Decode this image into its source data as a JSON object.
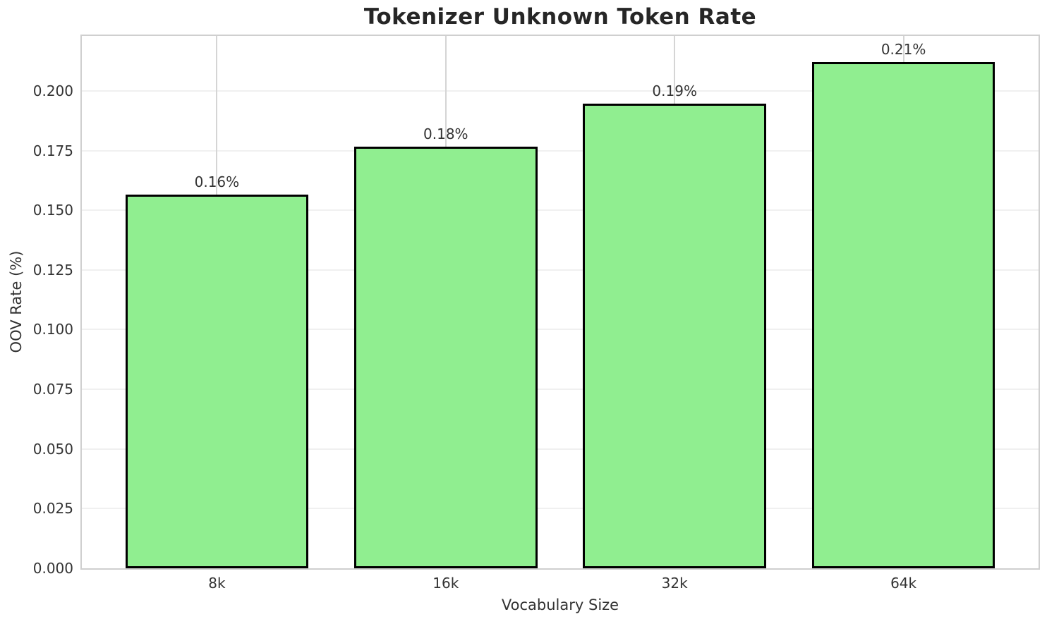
{
  "chart_data": {
    "type": "bar",
    "title": "Tokenizer Unknown Token Rate",
    "xlabel": "Vocabulary Size",
    "ylabel": "OOV Rate (%)",
    "categories": [
      "8k",
      "16k",
      "32k",
      "64k"
    ],
    "values": [
      0.1565,
      0.1765,
      0.1945,
      0.212
    ],
    "bar_labels": [
      "0.16%",
      "0.18%",
      "0.19%",
      "0.21%"
    ],
    "ylim": [
      0,
      0.223
    ],
    "ytick_labels": [
      "0.000",
      "0.025",
      "0.050",
      "0.075",
      "0.100",
      "0.125",
      "0.150",
      "0.175",
      "0.200"
    ],
    "ytick_values": [
      0.0,
      0.025,
      0.05,
      0.075,
      0.1,
      0.125,
      0.15,
      0.175,
      0.2
    ],
    "grid": "both",
    "legend": "none",
    "bar_color": "#90ee90",
    "bar_edge_color": "#000000",
    "bar_width_frac": 0.8
  }
}
